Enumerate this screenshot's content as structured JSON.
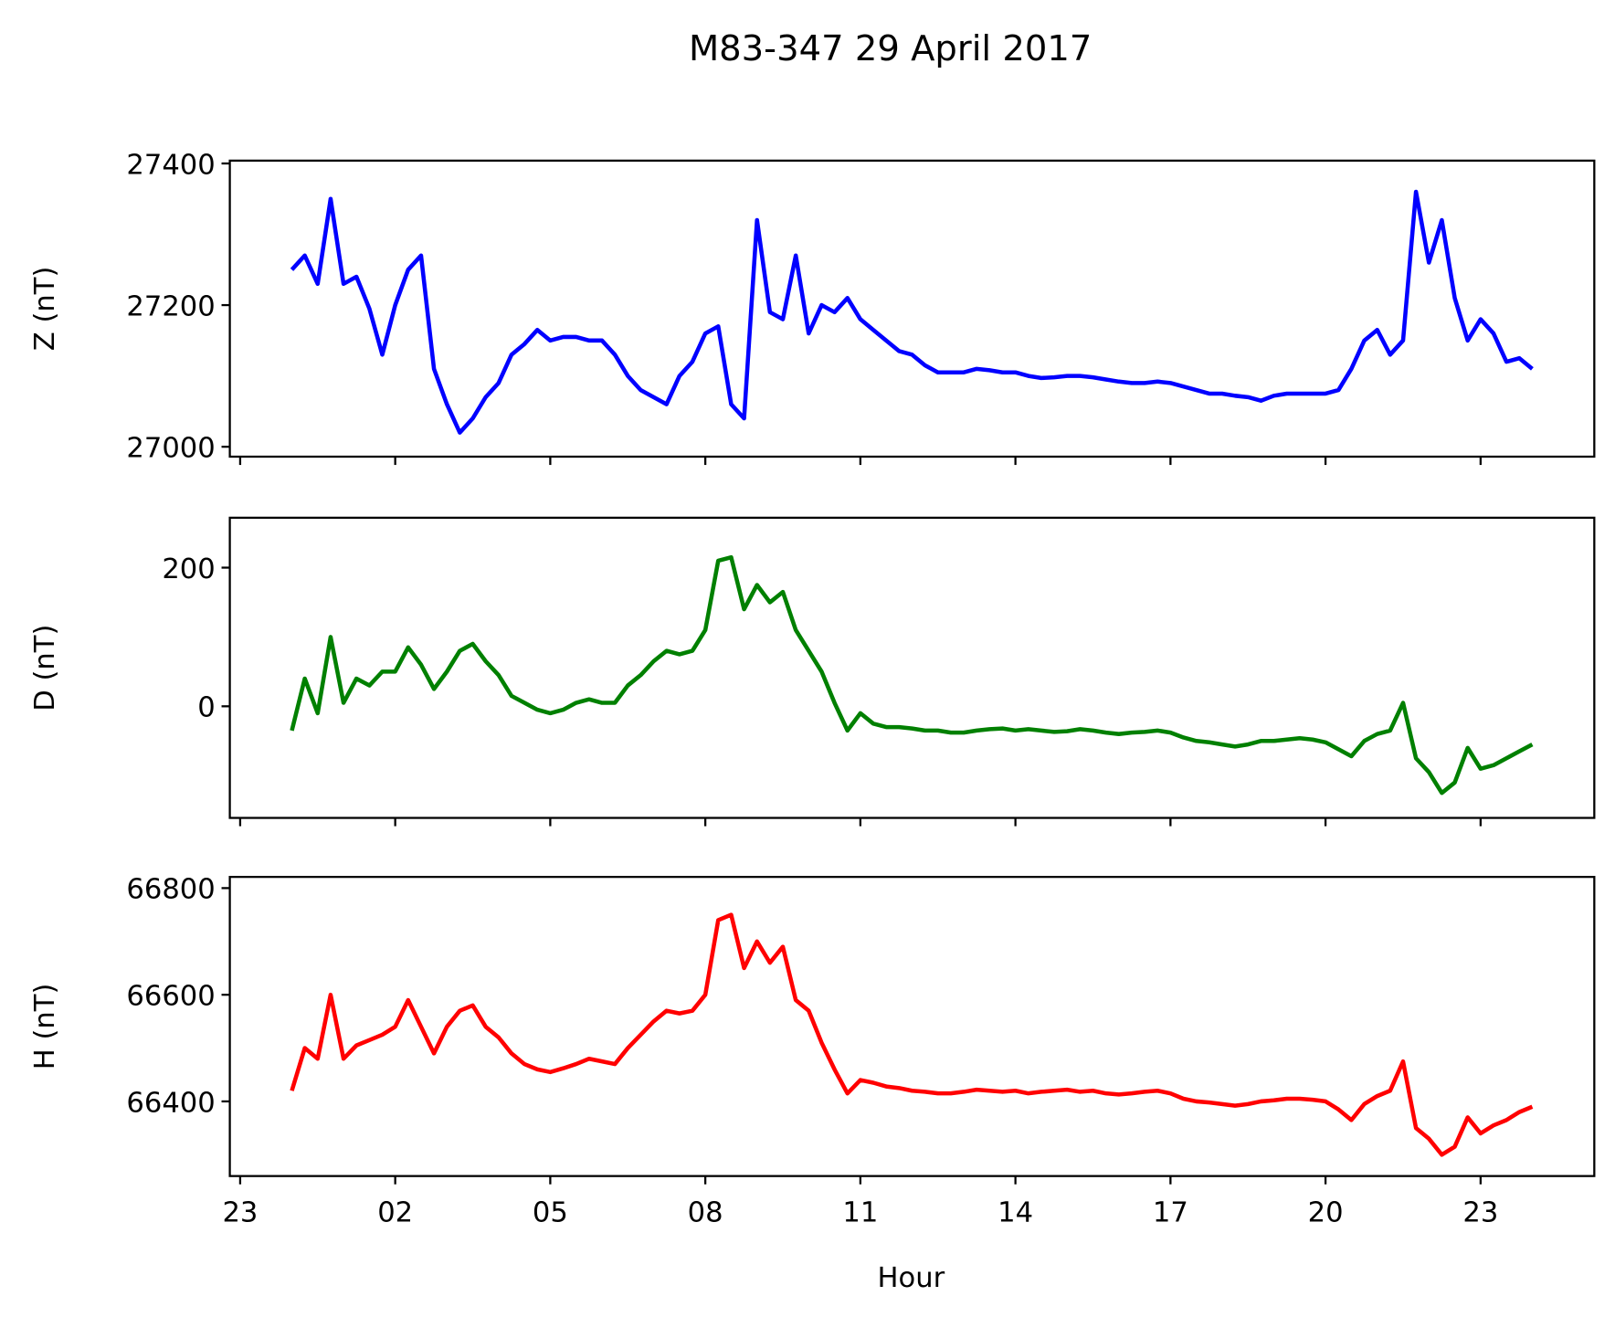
{
  "chart_data": {
    "type": "line",
    "title": "M83-347 29 April 2017",
    "xlabel": "Hour",
    "x": [
      0,
      0.25,
      0.5,
      0.75,
      1,
      1.25,
      1.5,
      1.75,
      2,
      2.25,
      2.5,
      2.75,
      3,
      3.25,
      3.5,
      3.75,
      4,
      4.25,
      4.5,
      4.75,
      5,
      5.25,
      5.5,
      5.75,
      6,
      6.25,
      6.5,
      6.75,
      7,
      7.25,
      7.5,
      7.75,
      8,
      8.25,
      8.5,
      8.75,
      9,
      9.25,
      9.5,
      9.75,
      10,
      10.25,
      10.5,
      10.75,
      11,
      11.25,
      11.5,
      11.75,
      12,
      12.25,
      12.5,
      12.75,
      13,
      13.25,
      13.5,
      13.75,
      14,
      14.25,
      14.5,
      14.75,
      15,
      15.25,
      15.5,
      15.75,
      16,
      16.25,
      16.5,
      16.75,
      17,
      17.25,
      17.5,
      17.75,
      18,
      18.25,
      18.5,
      18.75,
      19,
      19.25,
      19.5,
      19.75,
      20,
      20.25,
      20.5,
      20.75,
      21,
      21.25,
      21.5,
      21.75,
      22,
      22.25,
      22.5,
      22.75,
      23,
      23.25,
      23.5,
      23.75,
      24
    ],
    "xlim": [
      -1.2,
      25.2
    ],
    "xticks": [
      {
        "value": -1,
        "label": "23"
      },
      {
        "value": 2,
        "label": "02"
      },
      {
        "value": 5,
        "label": "05"
      },
      {
        "value": 8,
        "label": "08"
      },
      11,
      14,
      17,
      20,
      23
    ],
    "subplots": [
      {
        "ylabel": "Z (nT)",
        "ylim": [
          26986,
          27404
        ],
        "yticks": [
          27000,
          27200,
          27400
        ],
        "series": [
          {
            "color": "#0000ff",
            "values": [
              27250,
              27270,
              27230,
              27350,
              27230,
              27240,
              27195,
              27130,
              27200,
              27250,
              27270,
              27110,
              27060,
              27020,
              27040,
              27070,
              27090,
              27130,
              27145,
              27165,
              27150,
              27155,
              27155,
              27150,
              27150,
              27130,
              27100,
              27080,
              27070,
              27060,
              27100,
              27120,
              27160,
              27170,
              27060,
              27040,
              27320,
              27190,
              27180,
              27270,
              27160,
              27200,
              27190,
              27210,
              27180,
              27165,
              27150,
              27135,
              27130,
              27115,
              27105,
              27105,
              27105,
              27110,
              27108,
              27105,
              27105,
              27100,
              27097,
              27098,
              27100,
              27100,
              27098,
              27095,
              27092,
              27090,
              27090,
              27092,
              27090,
              27085,
              27080,
              27075,
              27075,
              27072,
              27070,
              27065,
              27072,
              27075,
              27075,
              27075,
              27075,
              27080,
              27110,
              27150,
              27165,
              27130,
              27150,
              27360,
              27260,
              27320,
              27210,
              27150,
              27180,
              27160,
              27120,
              27125,
              27110
            ]
          }
        ]
      },
      {
        "ylabel": "D (nT)",
        "ylim": [
          -161,
          272
        ],
        "yticks": [
          0,
          200
        ],
        "series": [
          {
            "color": "#008000",
            "values": [
              -35,
              40,
              -10,
              100,
              5,
              40,
              30,
              50,
              50,
              85,
              60,
              25,
              50,
              80,
              90,
              65,
              45,
              15,
              5,
              -5,
              -10,
              -5,
              5,
              10,
              5,
              5,
              30,
              45,
              65,
              80,
              75,
              80,
              110,
              210,
              215,
              140,
              175,
              150,
              165,
              110,
              80,
              50,
              5,
              -35,
              -10,
              -25,
              -30,
              -30,
              -32,
              -35,
              -35,
              -38,
              -38,
              -35,
              -33,
              -32,
              -35,
              -33,
              -35,
              -37,
              -36,
              -33,
              -35,
              -38,
              -40,
              -38,
              -37,
              -35,
              -38,
              -45,
              -50,
              -52,
              -55,
              -58,
              -55,
              -50,
              -50,
              -48,
              -46,
              -48,
              -52,
              -62,
              -72,
              -50,
              -40,
              -35,
              5,
              -75,
              -95,
              -125,
              -110,
              -60,
              -90,
              -85,
              -75,
              -65,
              -55
            ]
          }
        ]
      },
      {
        "ylabel": "H (nT)",
        "ylim": [
          66260,
          66821
        ],
        "yticks": [
          66400,
          66600,
          66800
        ],
        "series": [
          {
            "color": "#ff0000",
            "values": [
              66420,
              66500,
              66480,
              66600,
              66480,
              66505,
              66515,
              66525,
              66540,
              66590,
              66540,
              66490,
              66540,
              66570,
              66580,
              66540,
              66520,
              66490,
              66470,
              66460,
              66455,
              66462,
              66470,
              66480,
              66475,
              66470,
              66500,
              66525,
              66550,
              66570,
              66565,
              66570,
              66600,
              66740,
              66750,
              66650,
              66700,
              66660,
              66690,
              66590,
              66570,
              66510,
              66460,
              66415,
              66440,
              66435,
              66428,
              66425,
              66420,
              66418,
              66415,
              66415,
              66418,
              66422,
              66420,
              66418,
              66420,
              66415,
              66418,
              66420,
              66422,
              66418,
              66420,
              66415,
              66413,
              66415,
              66418,
              66420,
              66415,
              66405,
              66400,
              66398,
              66395,
              66392,
              66395,
              66400,
              66402,
              66405,
              66405,
              66403,
              66400,
              66385,
              66365,
              66395,
              66410,
              66420,
              66475,
              66350,
              66330,
              66300,
              66315,
              66370,
              66340,
              66355,
              66365,
              66380,
              66390
            ]
          }
        ]
      }
    ]
  }
}
